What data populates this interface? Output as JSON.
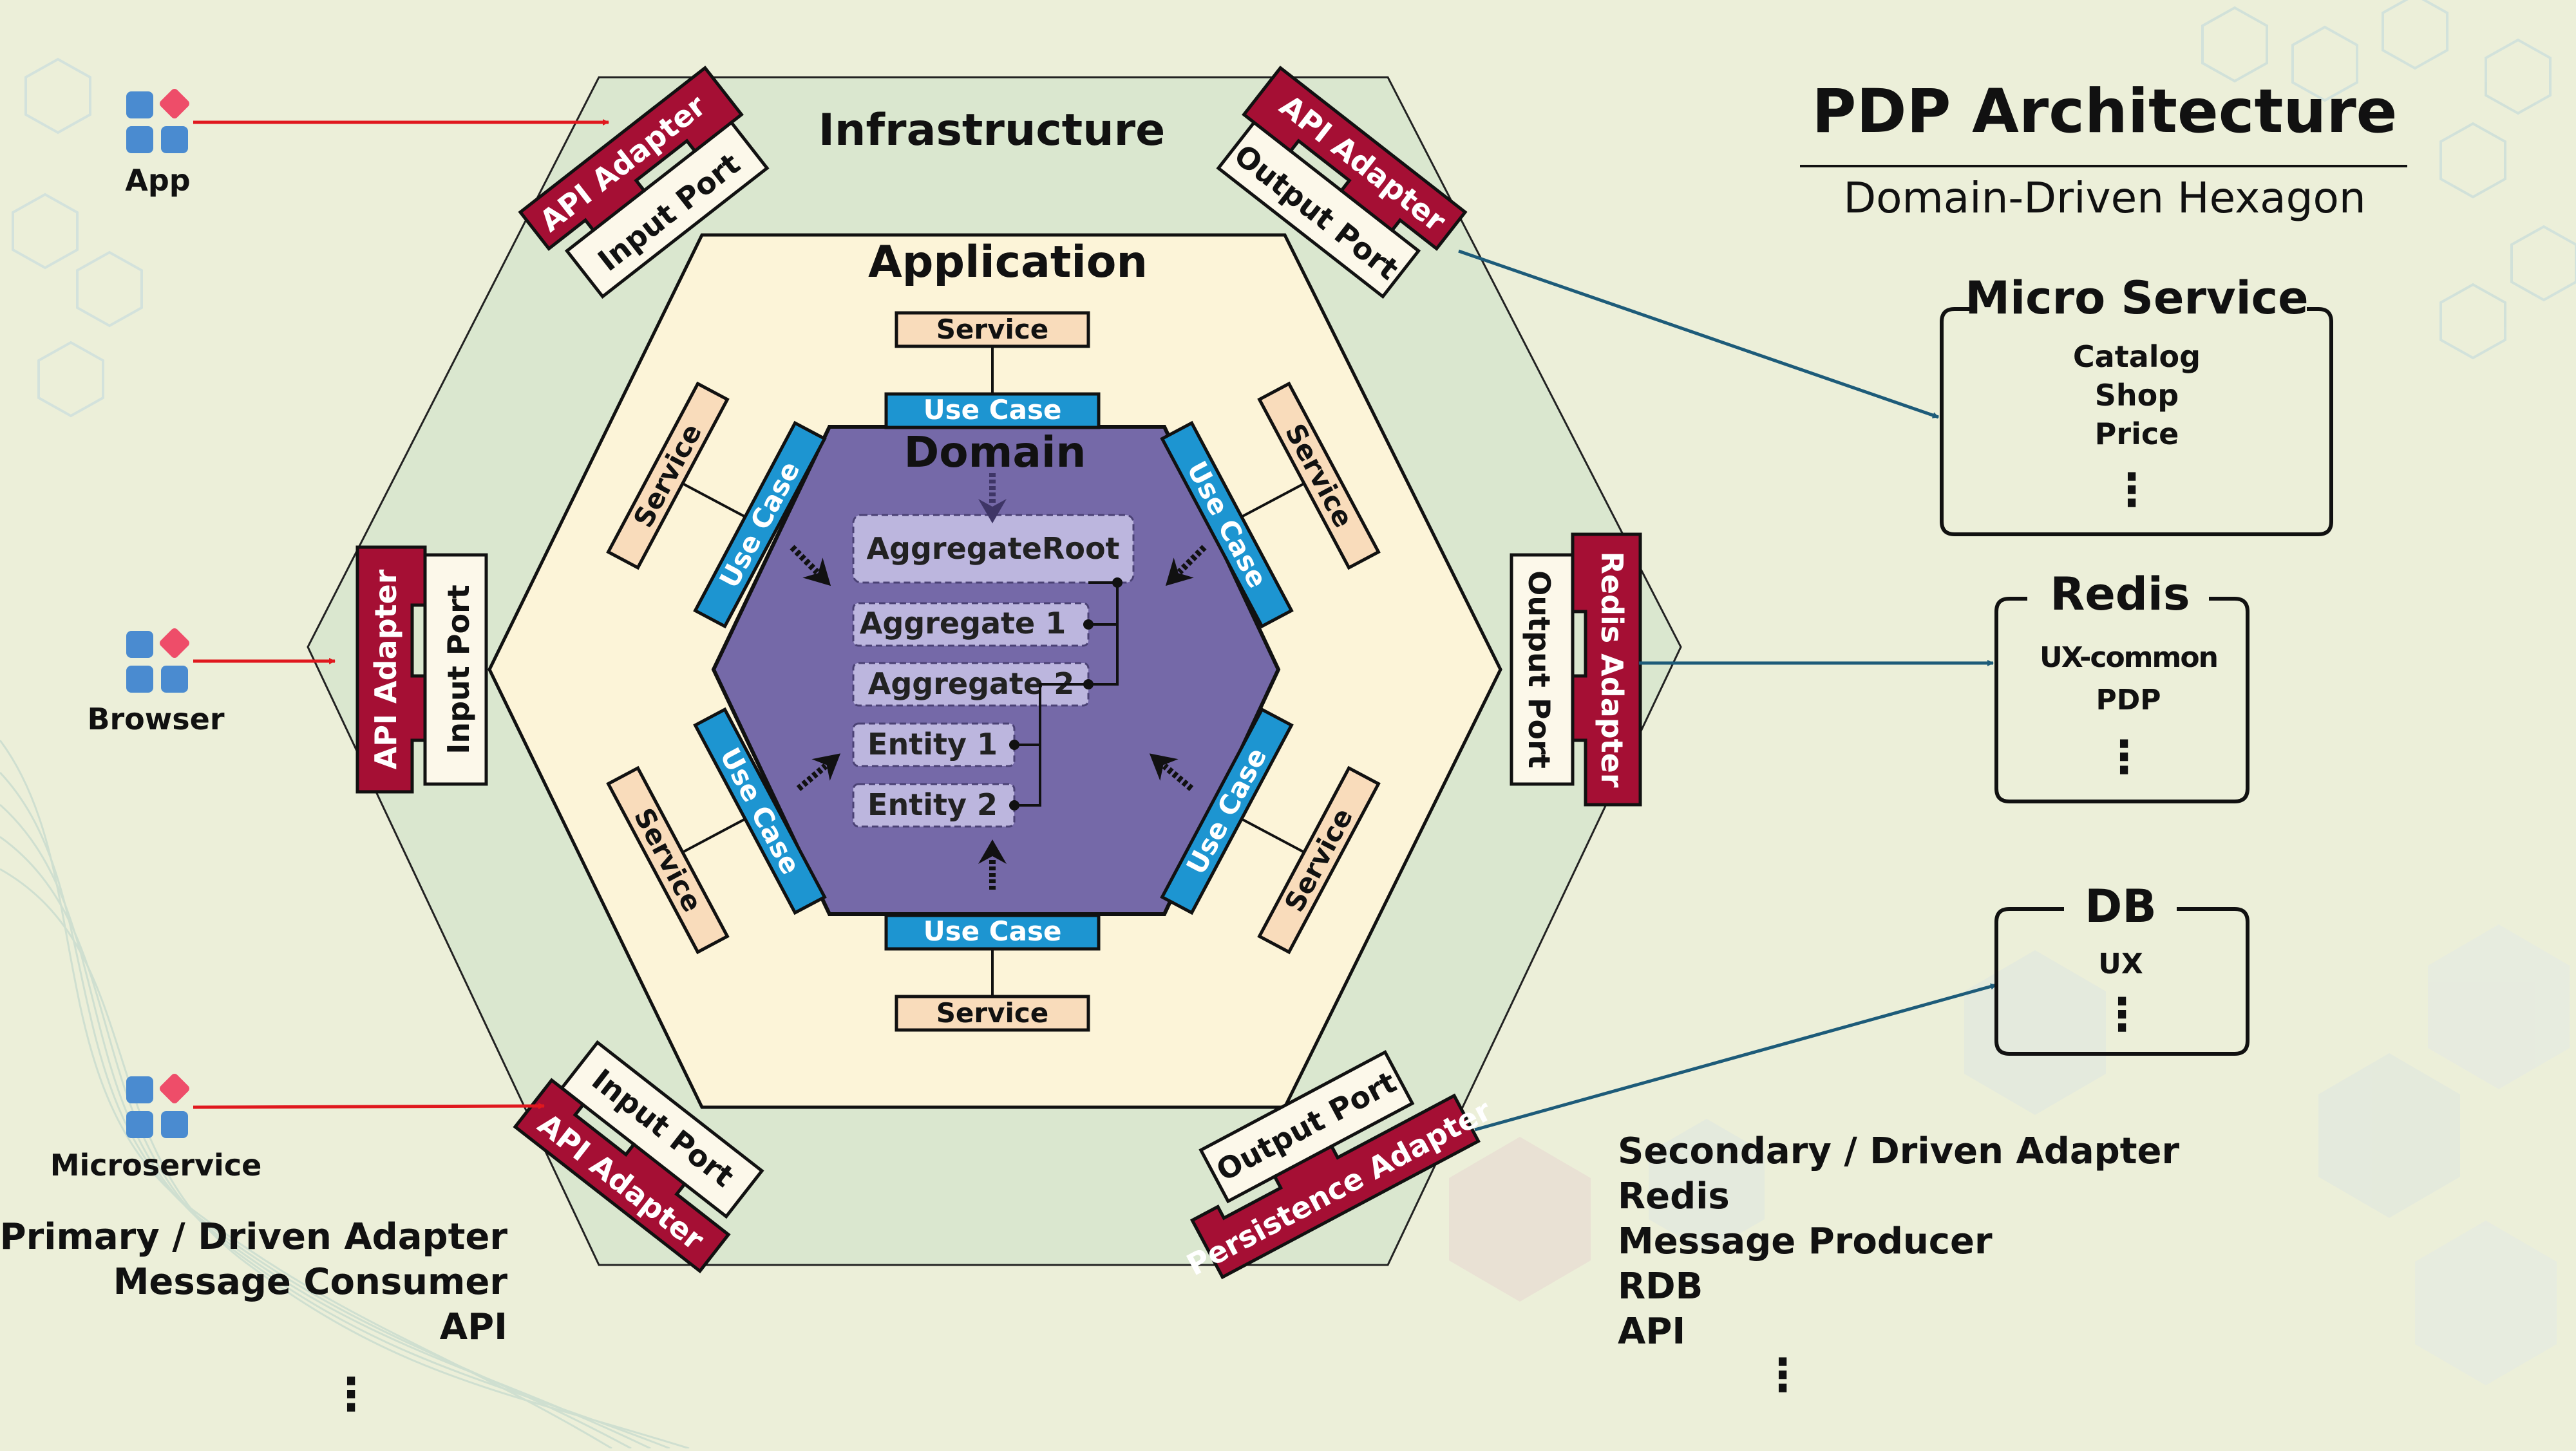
{
  "title": "PDP Architecture",
  "subtitle": "Domain-Driven Hexagon",
  "colors": {
    "background": "#ecefd9",
    "infrastructure": "#dae7cf",
    "application": "#fcf4d8",
    "domain": "#7569a8",
    "use_case": "#1d95d1",
    "service": "#f9dcbb",
    "adapter": "#a50f34",
    "port": "#fcf8ea",
    "inbound_arrow": "#e0181e",
    "outbound_arrow": "#1d5b79",
    "app_icon_blue": "#4a8bd0",
    "app_icon_pink": "#ee4d69"
  },
  "layers": {
    "infrastructure": "Infrastructure",
    "application": "Application",
    "domain": "Domain"
  },
  "domain_items": {
    "aggregate_root": "AggregateRoot",
    "aggregate_1": "Aggregate 1",
    "aggregate_2": "Aggregate 2",
    "entity_1": "Entity 1",
    "entity_2": "Entity 2"
  },
  "application": {
    "use_case": "Use Case",
    "service": "Service"
  },
  "adapters": {
    "api_adapter": "API Adapter",
    "input_port": "Input Port",
    "output_port": "Output Port",
    "redis_adapter": "Redis Adapter",
    "persistence_adapter": "Persistence Adapter"
  },
  "clients": [
    {
      "label": "App",
      "icon": "app-grid-icon"
    },
    {
      "label": "Browser",
      "icon": "app-grid-icon"
    },
    {
      "label": "Microservice",
      "icon": "app-grid-icon"
    }
  ],
  "primary_notes": {
    "lines": [
      "Primary / Driven Adapter",
      "Message Consumer",
      "API"
    ],
    "ellipsis": "⋮"
  },
  "secondary_notes": {
    "lines": [
      "Secondary / Driven Adapter",
      "Redis",
      "Message Producer",
      "RDB",
      "API"
    ],
    "ellipsis": "⋮"
  },
  "external_systems": [
    {
      "title": "Micro Service",
      "items": [
        "Catalog",
        "Shop",
        "Price"
      ],
      "ellipsis": "⋮"
    },
    {
      "title": "Redis",
      "items": [
        "UX-common",
        "PDP"
      ],
      "ellipsis": "⋮"
    },
    {
      "title": "DB",
      "items": [
        "UX"
      ],
      "ellipsis": "⋮"
    }
  ]
}
